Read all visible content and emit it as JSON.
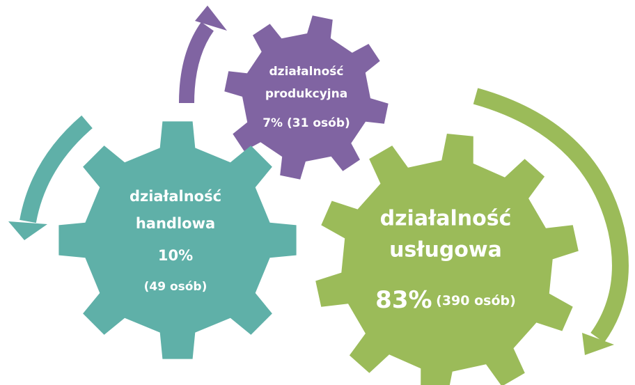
{
  "nodes": [
    {
      "label_lines": [
        "działalność",
        "handlowa"
      ],
      "share": "10%",
      "count": "(49 osób)"
    },
    {
      "label_lines": [
        "działalność",
        "produkcyjna"
      ],
      "share": "7%",
      "count": "(31 osób)"
    },
    {
      "label_lines": [
        "działalność",
        "usługowa"
      ],
      "share": "83%",
      "count": "(390 osób)"
    }
  ]
}
